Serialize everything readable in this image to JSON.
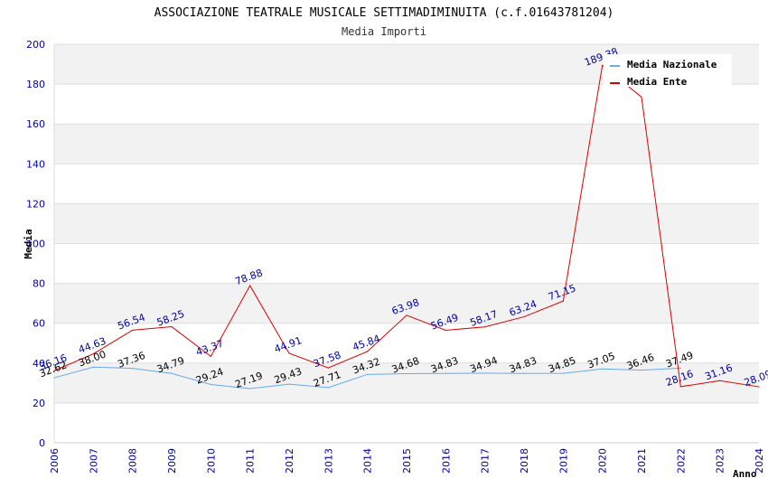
{
  "chart_data": {
    "type": "line",
    "title": "ASSOCIAZIONE TEATRALE MUSICALE SETTIMADIMINUITA (c.f.01643781204)",
    "subtitle": "Media Importi",
    "xlabel": "Anno",
    "ylabel": "Media",
    "ylim": [
      0,
      200
    ],
    "yticks": [
      0,
      20,
      40,
      60,
      80,
      100,
      120,
      140,
      160,
      180,
      200
    ],
    "categories": [
      "2006",
      "2007",
      "2008",
      "2009",
      "2010",
      "2011",
      "2012",
      "2013",
      "2014",
      "2015",
      "2016",
      "2017",
      "2018",
      "2019",
      "2020",
      "2021",
      "2022",
      "2023",
      "2024"
    ],
    "legend_position": "top-right",
    "series": [
      {
        "name": "Media Nazionale",
        "color": "#66aaee",
        "values": [
          32.62,
          38.0,
          37.36,
          34.79,
          29.24,
          27.19,
          29.43,
          27.71,
          34.32,
          34.68,
          34.83,
          34.94,
          34.83,
          34.85,
          37.05,
          36.46,
          37.49,
          null,
          null
        ],
        "labels": [
          "32.62",
          "38.00",
          "37.36",
          "34.79",
          "29.24",
          "27.19",
          "29.43",
          "27.71",
          "34.32",
          "34.68",
          "34.83",
          "34.94",
          "34.83",
          "34.85",
          "37.05",
          "36.46",
          "37.49",
          null,
          null
        ]
      },
      {
        "name": "Media Ente",
        "color": "#dd0000",
        "values": [
          36.16,
          44.63,
          56.54,
          58.25,
          43.37,
          78.88,
          44.91,
          37.58,
          45.84,
          63.98,
          56.49,
          58.17,
          63.24,
          71.15,
          189.38,
          173.5,
          28.16,
          31.16,
          28.09
        ],
        "labels": [
          "36.16",
          "44.63",
          "56.54",
          "58.25",
          "43.37",
          "78.88",
          "44.91",
          "37.58",
          "45.84",
          "63.98",
          "56.49",
          "58.17",
          "63.24",
          "71.15",
          "189.38",
          null,
          "28.16",
          "31.16",
          "28.09"
        ]
      }
    ]
  }
}
